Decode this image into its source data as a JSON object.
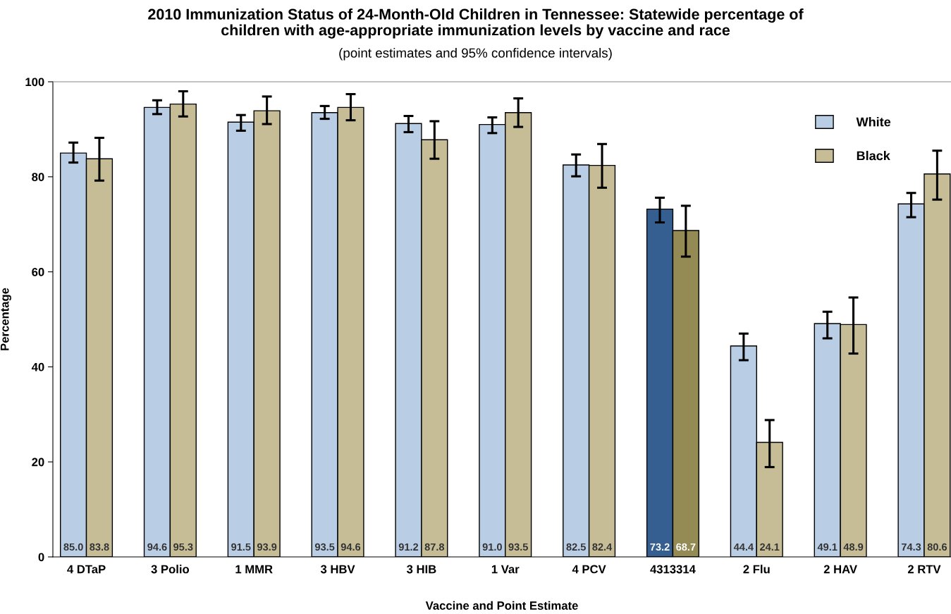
{
  "chart_data": {
    "type": "bar",
    "title": "2010 Immunization Status of 24-Month-Old Children in Tennessee: Statewide percentage of\nchildren with age-appropriate immunization levels by vaccine and race",
    "subtitle": "(point estimates and 95% confidence intervals)",
    "xlabel": "Vaccine and Point Estimate",
    "ylabel": "Percentage",
    "categories": [
      "4 DTaP",
      "3 Polio",
      "1 MMR",
      "3 HBV",
      "3 HIB",
      "1 Var",
      "4 PCV",
      "4313314",
      "2 Flu",
      "2 HAV",
      "2 RTV"
    ],
    "series": [
      {
        "name": "White",
        "color": "#b9cde4",
        "colors": [
          "#b9cde4",
          "#b9cde4",
          "#b9cde4",
          "#b9cde4",
          "#b9cde4",
          "#b9cde4",
          "#b9cde4",
          "#365f91",
          "#b9cde4",
          "#b9cde4",
          "#b9cde4"
        ],
        "values": [
          85.0,
          94.6,
          91.5,
          93.5,
          91.2,
          91.0,
          82.5,
          73.2,
          44.4,
          49.1,
          74.3
        ],
        "value_labels": [
          "85.0",
          "94.6",
          "91.5",
          "93.5",
          "91.2",
          "91.0",
          "82.5",
          "73.2",
          "44.4",
          "49.1",
          "74.3"
        ],
        "errors": [
          [
            83.0,
            87.2
          ],
          [
            93.2,
            96.1
          ],
          [
            89.7,
            93.0
          ],
          [
            92.2,
            94.9
          ],
          [
            89.4,
            92.8
          ],
          [
            89.2,
            92.5
          ],
          [
            80.1,
            84.7
          ],
          [
            70.4,
            75.6
          ],
          [
            41.4,
            47.0
          ],
          [
            46.0,
            51.6
          ],
          [
            71.5,
            76.6
          ]
        ]
      },
      {
        "name": "Black",
        "color": "#c6bd96",
        "colors": [
          "#c6bd96",
          "#c6bd96",
          "#c6bd96",
          "#c6bd96",
          "#c6bd96",
          "#c6bd96",
          "#c6bd96",
          "#948a54",
          "#c6bd96",
          "#c6bd96",
          "#c6bd96"
        ],
        "values": [
          83.8,
          95.3,
          93.9,
          94.6,
          87.8,
          93.5,
          82.4,
          68.7,
          24.1,
          48.9,
          80.6
        ],
        "value_labels": [
          "83.8",
          "95.3",
          "93.9",
          "94.6",
          "87.8",
          "93.5",
          "82.4",
          "68.7",
          "24.1",
          "48.9",
          "80.6"
        ],
        "errors": [
          [
            79.2,
            88.2
          ],
          [
            92.7,
            98.0
          ],
          [
            91.1,
            96.9
          ],
          [
            91.9,
            97.4
          ],
          [
            83.8,
            91.7
          ],
          [
            90.5,
            96.5
          ],
          [
            77.7,
            86.9
          ],
          [
            63.2,
            73.9
          ],
          [
            18.9,
            28.8
          ],
          [
            42.8,
            54.6
          ],
          [
            75.2,
            85.5
          ]
        ]
      }
    ],
    "ylim": [
      0,
      100
    ],
    "yticks": [
      0,
      20,
      40,
      60,
      80,
      100
    ],
    "grid": false,
    "legend": "top right"
  }
}
